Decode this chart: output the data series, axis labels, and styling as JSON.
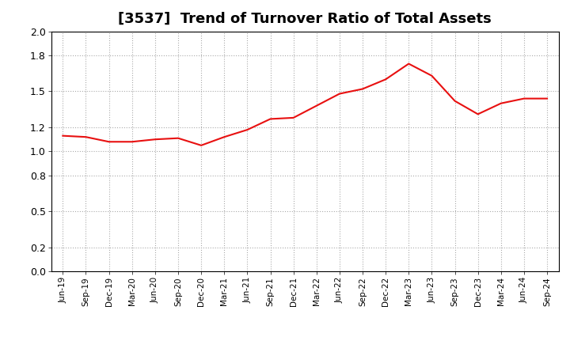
{
  "title": "[3537]  Trend of Turnover Ratio of Total Assets",
  "title_fontsize": 13,
  "line_color": "#e81010",
  "background_color": "#ffffff",
  "grid_color": "#aaaaaa",
  "ylim": [
    0.0,
    2.0
  ],
  "yticks": [
    0.0,
    0.2,
    0.5,
    0.8,
    1.0,
    1.2,
    1.5,
    1.8,
    2.0
  ],
  "x_labels": [
    "Jun-19",
    "Sep-19",
    "Dec-19",
    "Mar-20",
    "Jun-20",
    "Sep-20",
    "Dec-20",
    "Mar-21",
    "Jun-21",
    "Sep-21",
    "Dec-21",
    "Mar-22",
    "Jun-22",
    "Sep-22",
    "Dec-22",
    "Mar-23",
    "Jun-23",
    "Sep-23",
    "Dec-23",
    "Mar-24",
    "Jun-24",
    "Sep-24"
  ],
  "values": [
    1.13,
    1.12,
    1.08,
    1.08,
    1.1,
    1.11,
    1.05,
    1.12,
    1.18,
    1.27,
    1.28,
    1.38,
    1.48,
    1.52,
    1.6,
    1.73,
    1.63,
    1.42,
    1.31,
    1.4,
    1.44,
    1.44
  ]
}
